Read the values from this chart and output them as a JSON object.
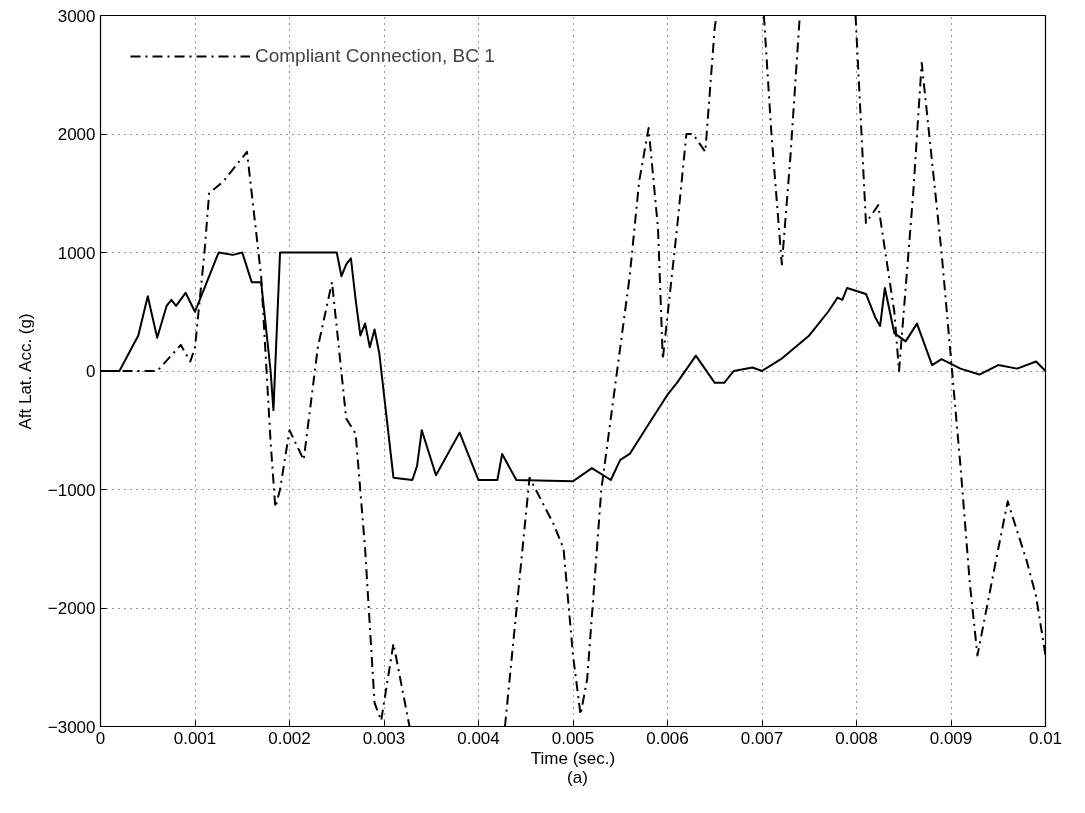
{
  "chart_data": {
    "type": "line",
    "xlabel": "Time (sec.)",
    "ylabel": "Aft Lat. Acc. (g)",
    "annotations": [
      "(a)"
    ],
    "xlim": [
      0,
      0.01
    ],
    "ylim": [
      -3000,
      3000
    ],
    "xticks": [
      0,
      0.001,
      0.002,
      0.003,
      0.004,
      0.005,
      0.006,
      0.007,
      0.008,
      0.009,
      0.01
    ],
    "yticks": [
      -3000,
      -2000,
      -1000,
      0,
      1000,
      2000,
      3000
    ],
    "grid": true,
    "legend": "top left",
    "marker": "none",
    "series": [
      {
        "color": "#000000",
        "line_style": "solid",
        "x": [
          0,
          0.0002,
          0.0004,
          0.0005,
          0.0006,
          0.0007,
          0.00075,
          0.0008,
          0.0009,
          0.001,
          0.0011,
          0.00125,
          0.0014,
          0.0015,
          0.0016,
          0.0017,
          0.0018,
          0.00183,
          0.0019,
          0.0025,
          0.00255,
          0.0026,
          0.00265,
          0.0027,
          0.00275,
          0.0028,
          0.00285,
          0.0029,
          0.00295,
          0.0031,
          0.0033,
          0.00335,
          0.0034,
          0.00355,
          0.0038,
          0.004,
          0.0042,
          0.00425,
          0.0044,
          0.005,
          0.0052,
          0.0054,
          0.0055,
          0.0056,
          0.0058,
          0.006,
          0.0061,
          0.0063,
          0.0065,
          0.0066,
          0.0067,
          0.0069,
          0.007,
          0.0072,
          0.0075,
          0.0077,
          0.0078,
          0.00785,
          0.0079,
          0.0081,
          0.0082,
          0.00825,
          0.0083,
          0.0084,
          0.00852,
          0.00864,
          0.0088,
          0.0089,
          0.0091,
          0.0093,
          0.0095,
          0.0097,
          0.0099,
          0.01
        ],
        "values": [
          0,
          0,
          300,
          630,
          280,
          550,
          600,
          550,
          660,
          500,
          700,
          1000,
          980,
          1000,
          750,
          750,
          0,
          -330,
          1000,
          1000,
          800,
          900,
          950,
          600,
          300,
          400,
          200,
          350,
          150,
          -900,
          -920,
          -800,
          -500,
          -880,
          -520,
          -920,
          -920,
          -700,
          -920,
          -930,
          -820,
          -920,
          -750,
          -700,
          -450,
          -200,
          -100,
          130,
          -100,
          -100,
          0,
          30,
          0,
          100,
          300,
          500,
          620,
          600,
          700,
          650,
          450,
          380,
          700,
          320,
          250,
          400,
          50,
          100,
          20,
          -30,
          50,
          20,
          80,
          0
        ]
      },
      {
        "name": "Compliant Connection, BC 1",
        "color": "#000000",
        "line_style": "dashdot",
        "x": [
          0,
          0.0006,
          0.00085,
          0.00095,
          0.001,
          0.0011,
          0.00115,
          0.0013,
          0.00155,
          0.0017,
          0.0018,
          0.00185,
          0.0019,
          0.002,
          0.00215,
          0.0023,
          0.00245,
          0.0026,
          0.0027,
          0.0028,
          0.0029,
          0.00297,
          0.0031,
          0.00327,
          0.0035,
          0.00428,
          0.00454,
          0.0048,
          0.0049,
          0.005,
          0.00508,
          0.00515,
          0.0053,
          0.0054,
          0.0056,
          0.0057,
          0.0058,
          0.0059,
          0.00595,
          0.0061,
          0.0062,
          0.00627,
          0.0064,
          0.0065,
          0.00652,
          0.0068,
          0.00702,
          0.0071,
          0.00721,
          0.0073,
          0.0074,
          0.0077,
          0.00799,
          0.0081,
          0.00823,
          0.0084,
          0.00845,
          0.0086,
          0.00869,
          0.0089,
          0.0091,
          0.0092,
          0.00928,
          0.0095,
          0.0096,
          0.0098,
          0.0099,
          0.01
        ],
        "values": [
          0,
          0,
          220,
          80,
          200,
          1000,
          1500,
          1600,
          1850,
          800,
          -600,
          -1150,
          -1000,
          -500,
          -750,
          200,
          750,
          -400,
          -530,
          -1500,
          -2800,
          -2950,
          -2300,
          -3000,
          null,
          -3000,
          -900,
          -1300,
          -1500,
          -2400,
          -2900,
          -2600,
          -1000,
          -400,
          800,
          1600,
          2050,
          1200,
          100,
          1200,
          2000,
          2000,
          1850,
          2900,
          3000,
          null,
          3000,
          2000,
          900,
          1800,
          3000,
          null,
          3000,
          1250,
          1400,
          500,
          0,
          1500,
          2600,
          1000,
          -800,
          -1800,
          -2400,
          -1500,
          -1100,
          -1600,
          -1900,
          -2400
        ]
      }
    ]
  }
}
